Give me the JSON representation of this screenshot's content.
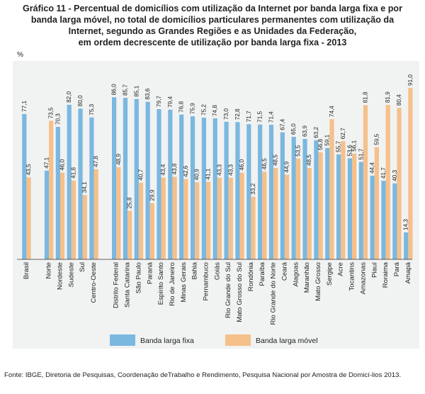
{
  "chart_data": {
    "type": "bar",
    "title_lines": [
      "Gráfico 11 - Percentual de domicílios com utilização da Internet por banda larga fixa e por",
      "banda larga móvel, no total de domicílios particulares permanentes com utilização da",
      "Internet, segundo as Grandes Regiões e as Unidades da Federação,",
      "em ordem decrescente de utilização por banda larga fixa - 2013"
    ],
    "ylabel": "%",
    "ylim": [
      0,
      100
    ],
    "categories": [
      "Brasil",
      "",
      "Norte",
      "Nordeste",
      "Sudeste",
      "Sul",
      "Centro-Oeste",
      "",
      "Distrito Federal",
      "Santa Catarina",
      "São Paulo",
      "Paraná",
      "Espírito Santo",
      "Rio de Janeiro",
      "Minas Gerais",
      "Bahia",
      "Pernambuco",
      "Goiás",
      "Rio Grande do Sul",
      "Mato Grosso do Sul",
      "Rondônia",
      "Paraíba",
      "Rio Grande do Norte",
      "Ceará",
      "Alagoas",
      "Maranhão",
      "Mato Grosso",
      "Sergipe",
      "Acre",
      "Tocantins",
      "Amazonas",
      "Piauí",
      "Roraima",
      "Pará",
      "Amapá"
    ],
    "series": [
      {
        "name": "Banda larga fixa",
        "color": "#7ab8e0",
        "values": [
          77.1,
          null,
          47.1,
          70.3,
          82.0,
          80.0,
          75.3,
          null,
          86.0,
          85.7,
          85.1,
          83.6,
          79.7,
          79.4,
          76.8,
          75.9,
          75.2,
          74.8,
          73.0,
          72.8,
          71.7,
          71.5,
          71.4,
          67.4,
          65.0,
          63.9,
          63.2,
          59.1,
          55.7,
          53.6,
          51.7,
          44.4,
          41.7,
          40.3,
          14.3
        ]
      },
      {
        "name": "Banda larga móvel",
        "color": "#f5c08a",
        "values": [
          43.5,
          null,
          73.5,
          46.0,
          41.8,
          34.1,
          47.8,
          null,
          48.9,
          25.8,
          40.7,
          29.9,
          43.4,
          43.8,
          42.6,
          40.9,
          41.1,
          43.3,
          43.3,
          46.0,
          33.2,
          46.5,
          48.5,
          44.9,
          53.5,
          48.5,
          56.8,
          74.4,
          62.7,
          56.1,
          81.8,
          59.5,
          81.9,
          80.4,
          91.0
        ]
      }
    ],
    "legend": {
      "placement": "bottom"
    },
    "gridlines": false
  },
  "source": "Fonte: IBGE, Diretoria de Pesquisas, Coordenação deTrabalho e Rendimento, Pesquisa Nacional por Amostra de Domicí-lios 2013."
}
